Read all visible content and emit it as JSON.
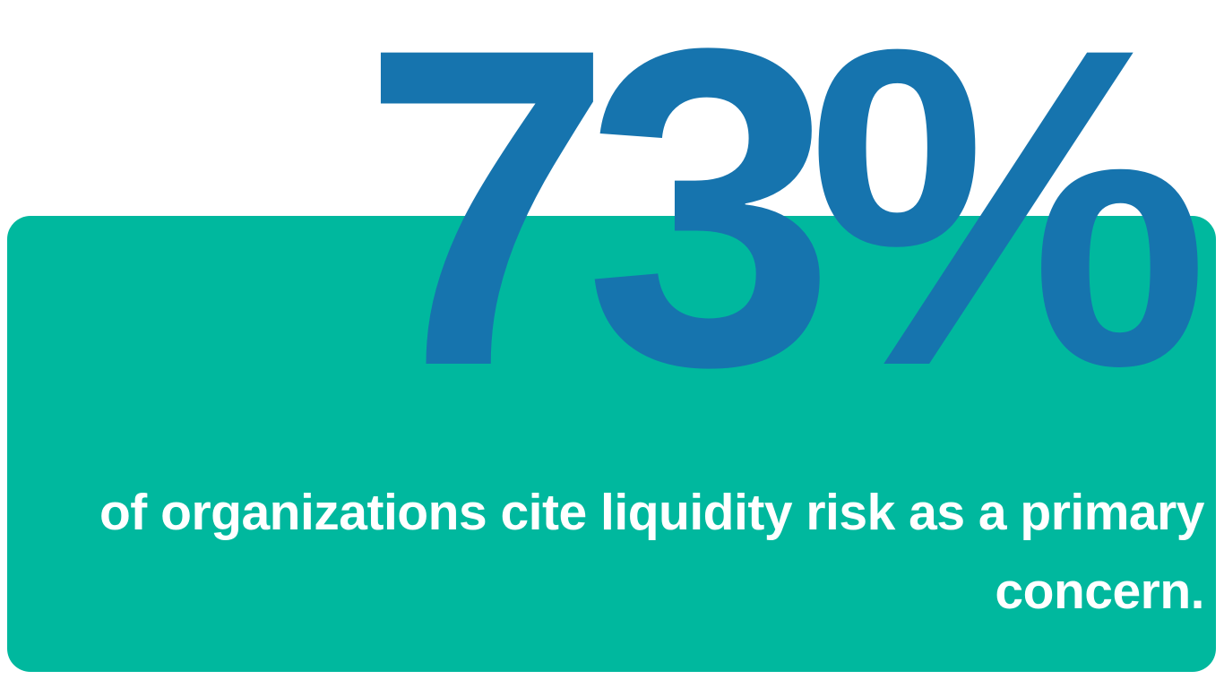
{
  "stat": {
    "value": "73%",
    "caption": "of organizations cite liquidity risk as a primary concern.",
    "percent": 73
  },
  "colors": {
    "background": "#ffffff",
    "card": "#00B89E",
    "stat_text": "#1674AE",
    "caption_text": "#ffffff"
  }
}
